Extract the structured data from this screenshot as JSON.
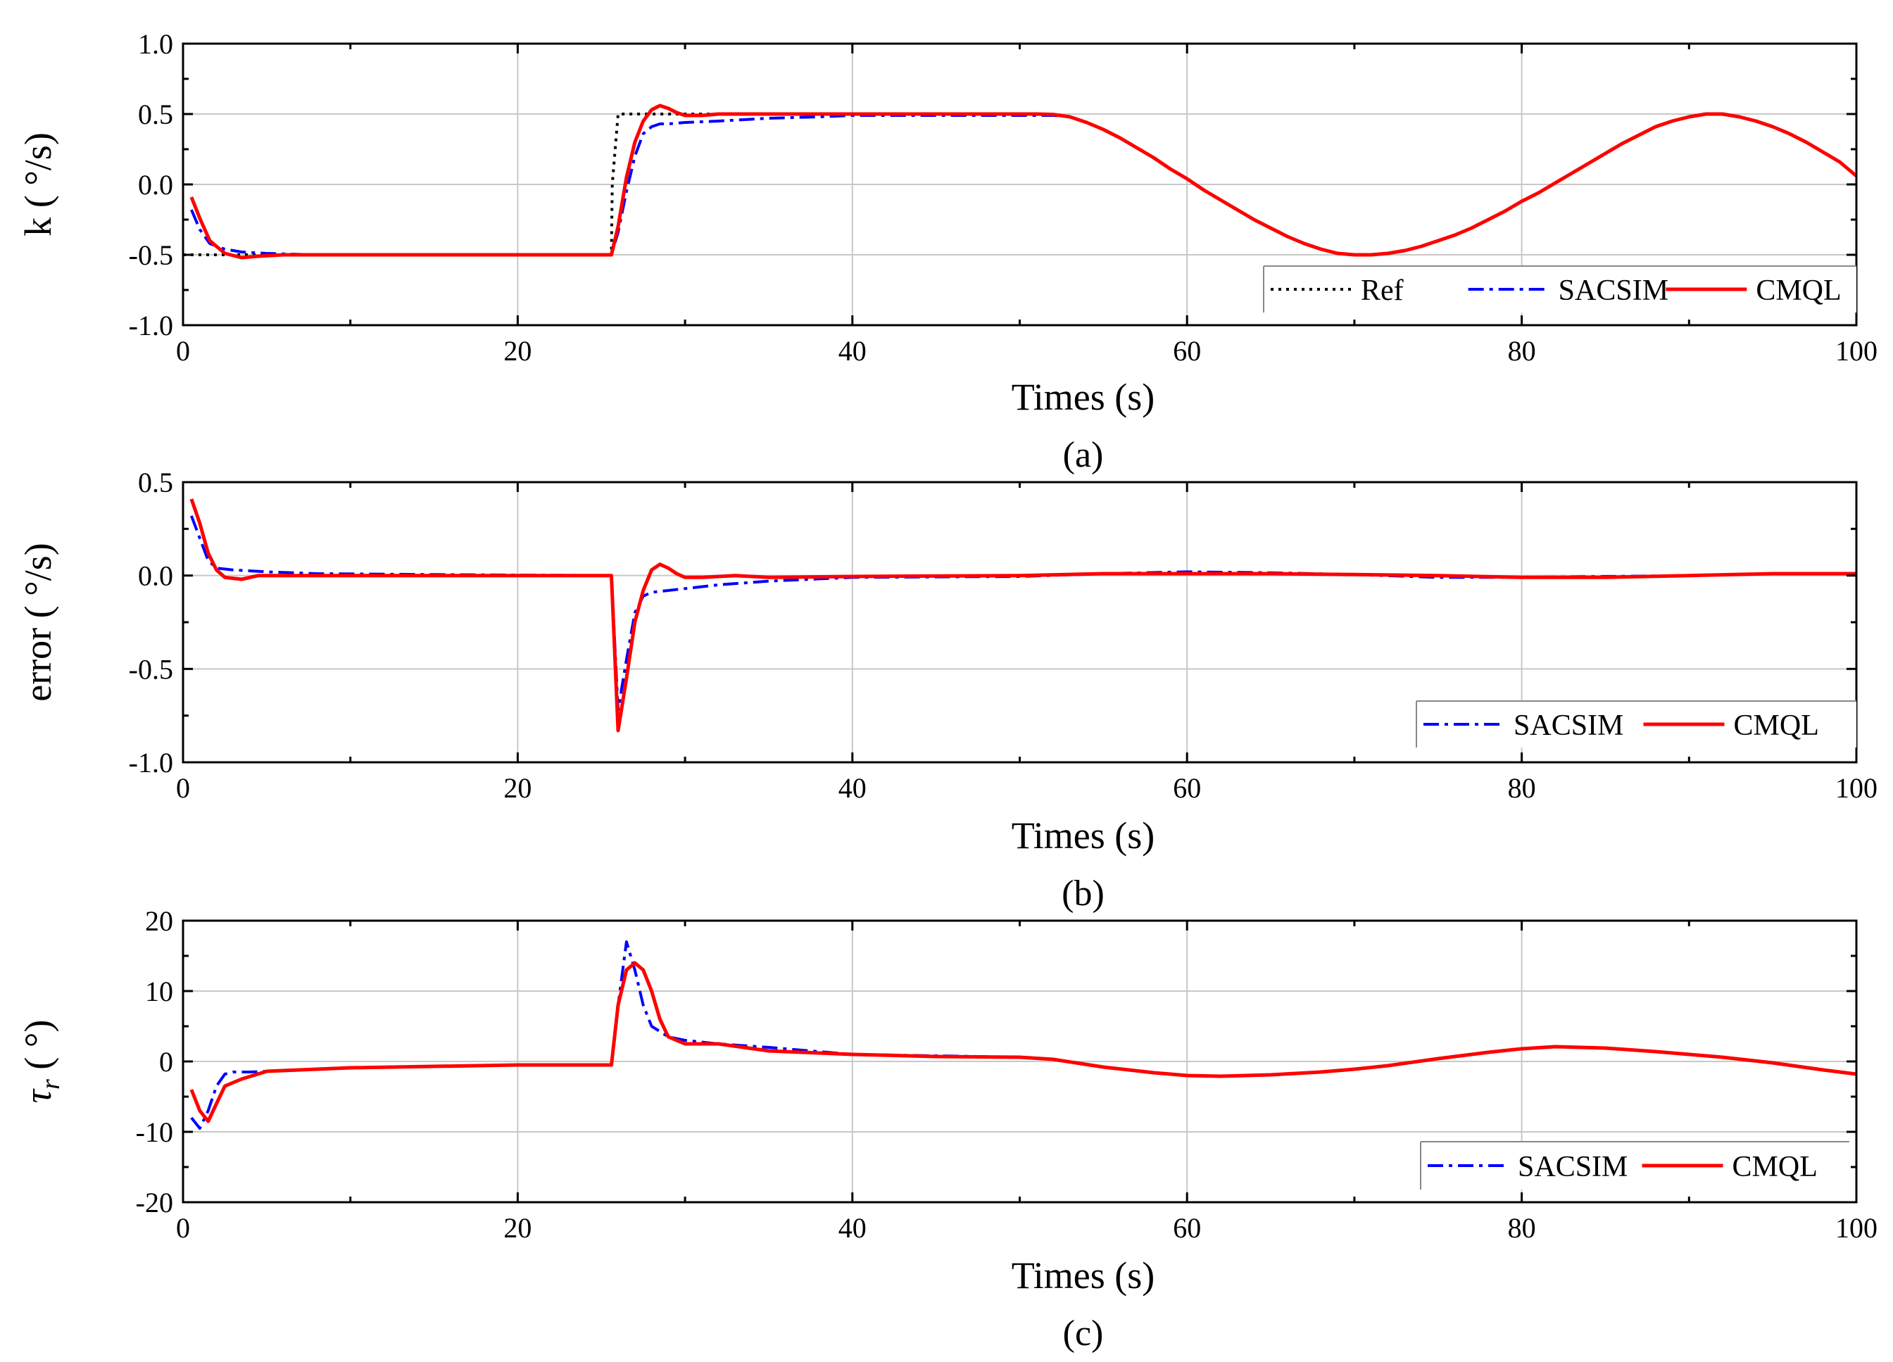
{
  "chart_data": [
    {
      "type": "line",
      "caption": "(a)",
      "xlabel": "Times (s)",
      "ylabel": "k ( °/s)",
      "xlim": [
        0,
        100
      ],
      "ylim": [
        -1.0,
        1.0
      ],
      "xticks": [
        0,
        20,
        40,
        60,
        80,
        100
      ],
      "xtick_labels": [
        "0",
        "20",
        "40",
        "60",
        "80",
        "100"
      ],
      "yticks": [
        -1.0,
        -0.5,
        0.0,
        0.5,
        1.0
      ],
      "ytick_labels": [
        "-1.0",
        "-0.5",
        "0.0",
        "0.5",
        "1.0"
      ],
      "grid": true,
      "legend_position": "bottom-right",
      "series": [
        {
          "name": "Ref",
          "color": "#000000",
          "style": "dotted",
          "x": [
            0,
            1,
            25.6,
            25.65,
            26,
            51,
            52,
            53,
            54,
            55,
            56,
            57,
            58,
            59,
            60,
            61,
            62,
            63,
            64,
            65,
            66,
            67,
            68,
            69,
            70,
            71,
            72,
            73,
            74,
            75,
            76,
            77,
            78,
            79,
            80,
            81,
            82,
            83,
            84,
            85,
            86,
            87,
            88,
            89,
            90,
            91,
            92,
            93,
            94,
            95,
            96,
            97,
            98,
            99,
            100
          ],
          "y": [
            -0.5,
            -0.5,
            -0.5,
            0.0,
            0.5,
            0.5,
            0.498,
            0.48,
            0.44,
            0.39,
            0.33,
            0.26,
            0.19,
            0.11,
            0.04,
            -0.04,
            -0.11,
            -0.18,
            -0.25,
            -0.31,
            -0.37,
            -0.42,
            -0.46,
            -0.49,
            -0.5,
            -0.5,
            -0.49,
            -0.47,
            -0.44,
            -0.4,
            -0.36,
            -0.31,
            -0.25,
            -0.19,
            -0.12,
            -0.06,
            0.01,
            0.08,
            0.15,
            0.22,
            0.29,
            0.35,
            0.41,
            0.45,
            0.48,
            0.5,
            0.5,
            0.48,
            0.45,
            0.41,
            0.36,
            0.3,
            0.23,
            0.16,
            0.06
          ]
        },
        {
          "name": "SACSIM",
          "color": "#0000ff",
          "style": "dashdot",
          "x": [
            0.5,
            1,
            1.6,
            2.5,
            3.5,
            5,
            8,
            25.6,
            26,
            26.5,
            27,
            27.5,
            28,
            28.5,
            29,
            30,
            32,
            35,
            38,
            40,
            45,
            50,
            51,
            52,
            53,
            54,
            55,
            56,
            57,
            58,
            59,
            60,
            61,
            62,
            63,
            64,
            65,
            66,
            67,
            68,
            69,
            70,
            71,
            72,
            73,
            74,
            75,
            76,
            77,
            78,
            79,
            80,
            81,
            82,
            83,
            84,
            85,
            86,
            87,
            88,
            89,
            90,
            91,
            92,
            93,
            94,
            95,
            96,
            97,
            98,
            99,
            100
          ],
          "y": [
            -0.18,
            -0.32,
            -0.42,
            -0.46,
            -0.48,
            -0.49,
            -0.5,
            -0.5,
            -0.34,
            -0.05,
            0.2,
            0.36,
            0.41,
            0.43,
            0.43,
            0.44,
            0.45,
            0.47,
            0.48,
            0.49,
            0.49,
            0.49,
            0.49,
            0.49,
            0.48,
            0.44,
            0.39,
            0.33,
            0.26,
            0.19,
            0.11,
            0.04,
            -0.04,
            -0.11,
            -0.18,
            -0.25,
            -0.31,
            -0.37,
            -0.42,
            -0.46,
            -0.49,
            -0.5,
            -0.5,
            -0.49,
            -0.47,
            -0.44,
            -0.4,
            -0.36,
            -0.31,
            -0.25,
            -0.19,
            -0.12,
            -0.06,
            0.01,
            0.08,
            0.15,
            0.22,
            0.29,
            0.35,
            0.41,
            0.45,
            0.48,
            0.5,
            0.5,
            0.48,
            0.45,
            0.41,
            0.36,
            0.3,
            0.23,
            0.16,
            0.06
          ]
        },
        {
          "name": "CMQL",
          "color": "#ff0000",
          "style": "solid",
          "x": [
            0.5,
            1,
            1.6,
            2.5,
            3.5,
            4.5,
            6,
            8,
            25.6,
            26,
            26.5,
            27,
            27.5,
            28,
            28.5,
            29,
            29.5,
            30,
            31,
            32,
            35,
            40,
            45,
            50,
            51,
            52,
            53,
            54,
            55,
            56,
            57,
            58,
            59,
            60,
            61,
            62,
            63,
            64,
            65,
            66,
            67,
            68,
            69,
            70,
            71,
            72,
            73,
            74,
            75,
            76,
            77,
            78,
            79,
            80,
            81,
            82,
            83,
            84,
            85,
            86,
            87,
            88,
            89,
            90,
            91,
            92,
            93,
            94,
            95,
            96,
            97,
            98,
            99,
            100
          ],
          "y": [
            -0.09,
            -0.24,
            -0.4,
            -0.49,
            -0.52,
            -0.51,
            -0.5,
            -0.5,
            -0.5,
            -0.3,
            0.05,
            0.3,
            0.45,
            0.53,
            0.56,
            0.54,
            0.51,
            0.49,
            0.49,
            0.5,
            0.5,
            0.5,
            0.5,
            0.5,
            0.5,
            0.497,
            0.48,
            0.44,
            0.39,
            0.33,
            0.26,
            0.19,
            0.11,
            0.04,
            -0.04,
            -0.11,
            -0.18,
            -0.25,
            -0.31,
            -0.37,
            -0.42,
            -0.46,
            -0.49,
            -0.5,
            -0.5,
            -0.49,
            -0.47,
            -0.44,
            -0.4,
            -0.36,
            -0.31,
            -0.25,
            -0.19,
            -0.12,
            -0.06,
            0.01,
            0.08,
            0.15,
            0.22,
            0.29,
            0.35,
            0.41,
            0.45,
            0.48,
            0.5,
            0.5,
            0.48,
            0.45,
            0.41,
            0.36,
            0.3,
            0.23,
            0.16,
            0.06
          ]
        }
      ]
    },
    {
      "type": "line",
      "caption": "(b)",
      "xlabel": "Times (s)",
      "ylabel": "error ( °/s)",
      "xlim": [
        0,
        100
      ],
      "ylim": [
        -1.0,
        0.5
      ],
      "xticks": [
        0,
        20,
        40,
        60,
        80,
        100
      ],
      "xtick_labels": [
        "0",
        "20",
        "40",
        "60",
        "80",
        "100"
      ],
      "yticks": [
        -1.0,
        -0.5,
        0.0,
        0.5
      ],
      "ytick_labels": [
        "-1.0",
        "-0.5",
        "0.0",
        "0.5"
      ],
      "grid": true,
      "legend_position": "bottom-right",
      "series": [
        {
          "name": "SACSIM",
          "color": "#0000ff",
          "style": "dashdot",
          "x": [
            0.5,
            1,
            1.5,
            2,
            3,
            5,
            8,
            15,
            25.6,
            26,
            26.5,
            27,
            27.5,
            28,
            29,
            30,
            32,
            35,
            40,
            50,
            55,
            60,
            65,
            70,
            75,
            80,
            85,
            90,
            95,
            100
          ],
          "y": [
            0.32,
            0.2,
            0.08,
            0.04,
            0.03,
            0.02,
            0.01,
            0.005,
            0.0,
            -0.72,
            -0.45,
            -0.2,
            -0.11,
            -0.09,
            -0.08,
            -0.07,
            -0.05,
            -0.03,
            -0.01,
            -0.005,
            0.01,
            0.02,
            0.015,
            0.005,
            -0.01,
            -0.01,
            -0.005,
            0.0,
            0.01,
            0.01
          ]
        },
        {
          "name": "CMQL",
          "color": "#ff0000",
          "style": "solid",
          "x": [
            0.5,
            1,
            1.5,
            2,
            2.5,
            3.5,
            4.5,
            6,
            10,
            25.6,
            26,
            26.5,
            27,
            27.5,
            28,
            28.5,
            29,
            29.5,
            30,
            31,
            33,
            35,
            40,
            50,
            55,
            60,
            65,
            70,
            75,
            80,
            85,
            90,
            95,
            100
          ],
          "y": [
            0.41,
            0.28,
            0.12,
            0.03,
            -0.01,
            -0.02,
            0.0,
            0.0,
            0.0,
            0.0,
            -0.83,
            -0.55,
            -0.25,
            -0.08,
            0.03,
            0.06,
            0.04,
            0.01,
            -0.01,
            -0.01,
            0.0,
            -0.01,
            -0.005,
            0.0,
            0.01,
            0.01,
            0.01,
            0.005,
            0.0,
            -0.01,
            -0.01,
            0.0,
            0.01,
            0.01
          ]
        }
      ]
    },
    {
      "type": "line",
      "caption": "(c)",
      "xlabel": "Times (s)",
      "ylabel": "τr ( °)",
      "ylabel_main": "τ",
      "ylabel_sub": "r",
      "ylabel_unit": " ( °)",
      "xlim": [
        0,
        100
      ],
      "ylim": [
        -20,
        20
      ],
      "xticks": [
        0,
        20,
        40,
        60,
        80,
        100
      ],
      "xtick_labels": [
        "0",
        "20",
        "40",
        "60",
        "80",
        "100"
      ],
      "yticks": [
        -20,
        -10,
        0,
        10,
        20
      ],
      "ytick_labels": [
        "-20",
        "-10",
        "0",
        "10",
        "20"
      ],
      "grid": true,
      "legend_position": "bottom-right",
      "series": [
        {
          "name": "SACSIM",
          "color": "#0000ff",
          "style": "dashdot",
          "x": [
            0.5,
            1,
            1.5,
            2,
            2.5,
            3,
            4,
            5,
            10,
            20,
            25.6,
            26,
            26.5,
            27,
            27.5,
            28,
            29,
            30,
            32,
            35,
            40,
            45,
            50,
            52,
            55,
            58,
            60,
            62,
            65,
            68,
            70,
            72,
            75,
            78,
            80,
            82,
            85,
            88,
            90,
            92,
            95,
            98,
            100
          ],
          "y": [
            -8,
            -9.5,
            -7,
            -3.5,
            -1.8,
            -1.5,
            -1.5,
            -1.4,
            -0.9,
            -0.5,
            -0.5,
            8,
            17,
            13,
            8,
            5,
            3.5,
            3,
            2.5,
            2,
            1,
            0.8,
            0.6,
            0.3,
            -0.8,
            -1.6,
            -2,
            -2.1,
            -1.9,
            -1.5,
            -1.1,
            -0.6,
            0.4,
            1.3,
            1.8,
            2.1,
            1.9,
            1.4,
            1,
            0.6,
            -0.2,
            -1.2,
            -1.8
          ]
        },
        {
          "name": "CMQL",
          "color": "#ff0000",
          "style": "solid",
          "x": [
            0.5,
            1,
            1.5,
            2,
            2.5,
            3.5,
            5,
            10,
            20,
            25.6,
            26,
            26.5,
            27,
            27.5,
            28,
            28.5,
            29,
            30,
            32,
            35,
            40,
            45,
            50,
            52,
            55,
            58,
            60,
            62,
            65,
            68,
            70,
            72,
            75,
            78,
            80,
            82,
            85,
            88,
            90,
            92,
            95,
            98,
            100
          ],
          "y": [
            -4,
            -7,
            -8.5,
            -6,
            -3.5,
            -2.5,
            -1.4,
            -0.9,
            -0.5,
            -0.5,
            8,
            13,
            14,
            13,
            10,
            6,
            3.5,
            2.5,
            2.5,
            1.5,
            1,
            0.7,
            0.6,
            0.3,
            -0.8,
            -1.6,
            -2,
            -2.1,
            -1.9,
            -1.5,
            -1.1,
            -0.6,
            0.4,
            1.3,
            1.8,
            2.1,
            1.9,
            1.4,
            1,
            0.6,
            -0.2,
            -1.2,
            -1.8
          ]
        }
      ]
    }
  ]
}
